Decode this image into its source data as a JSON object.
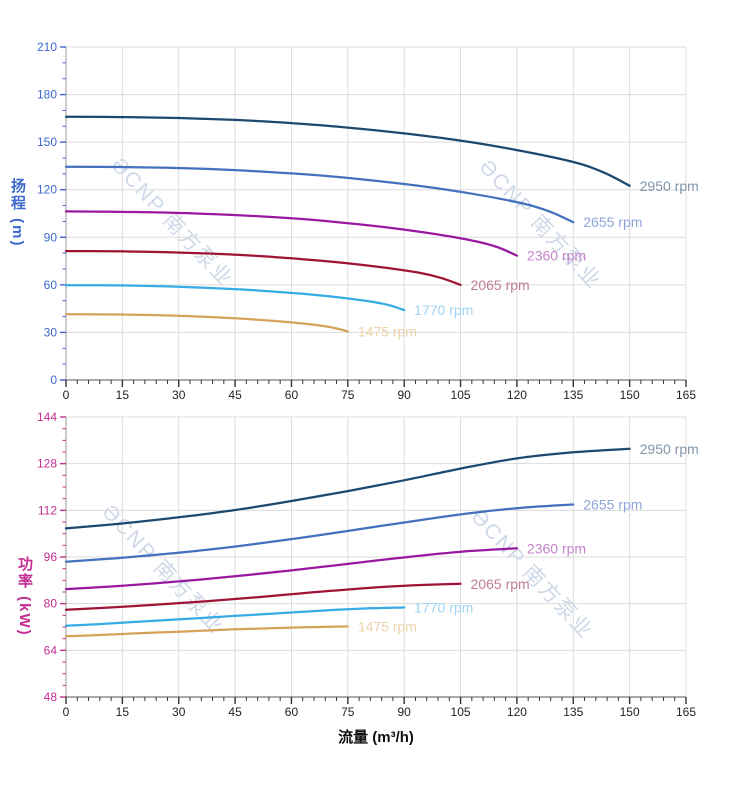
{
  "watermark": {
    "text": "ƏCNP 南方泵业",
    "color": "#c6d2e4"
  },
  "x_axis": {
    "label": "流量 (m³/h)",
    "min": 0,
    "max": 165,
    "tick_values": [
      0,
      15,
      30,
      45,
      60,
      75,
      90,
      105,
      120,
      135,
      150,
      165
    ],
    "minor_step": 3,
    "tick_label_color": "#222222"
  },
  "chart_data": [
    {
      "type": "line",
      "title": "",
      "ylabel": "扬程 (m)",
      "xlabel": "流量 (m³/h)",
      "axis_color": "#3e68cc",
      "grid": true,
      "ylim": [
        0,
        210
      ],
      "y_tick_values": [
        0,
        30,
        60,
        90,
        120,
        150,
        180,
        210
      ],
      "y_minor_step": 10,
      "series": [
        {
          "name": "2950 rpm",
          "color": "#1c4970",
          "label_color": "#8295a9",
          "points": [
            [
              0,
              166
            ],
            [
              15,
              165.8
            ],
            [
              30,
              165.2
            ],
            [
              45,
              164
            ],
            [
              60,
              162
            ],
            [
              75,
              159.2
            ],
            [
              90,
              155.5
            ],
            [
              105,
              151
            ],
            [
              120,
              145
            ],
            [
              135,
              137.5
            ],
            [
              143,
              131
            ],
            [
              150,
              122.5
            ]
          ]
        },
        {
          "name": "2655 rpm",
          "color": "#4471bd",
          "label_color": "#8fa6da",
          "points": [
            [
              0,
              134.5
            ],
            [
              13.5,
              134.3
            ],
            [
              27,
              133.8
            ],
            [
              40.5,
              132.8
            ],
            [
              54,
              131.2
            ],
            [
              67.5,
              129
            ],
            [
              81,
              126
            ],
            [
              94.5,
              122.3
            ],
            [
              108,
              117.5
            ],
            [
              121.5,
              111.4
            ],
            [
              129,
              106
            ],
            [
              135,
              99.5
            ]
          ]
        },
        {
          "name": "2360 rpm",
          "color": "#98199f",
          "label_color": "#c584cb",
          "points": [
            [
              0,
              106.3
            ],
            [
              12,
              106.1
            ],
            [
              24,
              105.7
            ],
            [
              36,
              104.9
            ],
            [
              48,
              103.7
            ],
            [
              60,
              102
            ],
            [
              72,
              99.6
            ],
            [
              84,
              96.6
            ],
            [
              96,
              92.8
            ],
            [
              108,
              88
            ],
            [
              114.7,
              83.9
            ],
            [
              120,
              78.4
            ]
          ]
        },
        {
          "name": "2065 rpm",
          "color": "#a01335",
          "label_color": "#bd7b95",
          "points": [
            [
              0,
              81.3
            ],
            [
              10.5,
              81.2
            ],
            [
              21,
              80.9
            ],
            [
              31.5,
              80.3
            ],
            [
              42,
              79.4
            ],
            [
              52.5,
              78
            ],
            [
              63,
              76.2
            ],
            [
              73.5,
              74
            ],
            [
              84,
              71.1
            ],
            [
              94.5,
              67.4
            ],
            [
              100,
              64.2
            ],
            [
              105,
              60
            ]
          ]
        },
        {
          "name": "1770 rpm",
          "color": "#35ace4",
          "label_color": "#9fd3f1",
          "points": [
            [
              0,
              59.8
            ],
            [
              9,
              59.7
            ],
            [
              18,
              59.5
            ],
            [
              27,
              59
            ],
            [
              36,
              58.3
            ],
            [
              45,
              57.3
            ],
            [
              54,
              56
            ],
            [
              63,
              54.4
            ],
            [
              72,
              52.3
            ],
            [
              81,
              49.5
            ],
            [
              86,
              47.2
            ],
            [
              90,
              44.1
            ]
          ]
        },
        {
          "name": "1475 rpm",
          "color": "#d5a259",
          "label_color": "#ecd2a9",
          "points": [
            [
              0,
              41.5
            ],
            [
              7.5,
              41.4
            ],
            [
              15,
              41.3
            ],
            [
              22.5,
              41
            ],
            [
              30,
              40.5
            ],
            [
              37.5,
              39.8
            ],
            [
              45,
              38.9
            ],
            [
              52.5,
              37.8
            ],
            [
              60,
              36.3
            ],
            [
              67.5,
              34.4
            ],
            [
              71.5,
              32.8
            ],
            [
              75,
              30.6
            ]
          ]
        }
      ]
    },
    {
      "type": "line",
      "title": "",
      "ylabel": "功率 (kW)",
      "xlabel": "流量 (m³/h)",
      "axis_color": "#c42d92",
      "grid": true,
      "ylim": [
        48,
        144
      ],
      "y_tick_values": [
        48,
        64,
        80,
        96,
        112,
        128,
        144
      ],
      "y_minor_step": 4,
      "series": [
        {
          "name": "2950 rpm",
          "color": "#1c4970",
          "label_color": "#8295a9",
          "points": [
            [
              0,
              105.8
            ],
            [
              15,
              107.5
            ],
            [
              30,
              109.6
            ],
            [
              45,
              112.1
            ],
            [
              60,
              115.2
            ],
            [
              75,
              118.6
            ],
            [
              90,
              122.3
            ],
            [
              105,
              126.3
            ],
            [
              120,
              129.8
            ],
            [
              135,
              131.9
            ],
            [
              150,
              133.1
            ]
          ]
        },
        {
          "name": "2655 rpm",
          "color": "#4471bd",
          "label_color": "#8fa6da",
          "points": [
            [
              0,
              94.4
            ],
            [
              13.5,
              95.6
            ],
            [
              27,
              97.1
            ],
            [
              40.5,
              98.9
            ],
            [
              54,
              101.1
            ],
            [
              67.5,
              103.5
            ],
            [
              81,
              106.1
            ],
            [
              94.5,
              108.7
            ],
            [
              108,
              111.1
            ],
            [
              121.5,
              112.9
            ],
            [
              135,
              114
            ]
          ]
        },
        {
          "name": "2360 rpm",
          "color": "#98199f",
          "label_color": "#c584cb",
          "points": [
            [
              0,
              85
            ],
            [
              12,
              85.9
            ],
            [
              24,
              87
            ],
            [
              36,
              88.3
            ],
            [
              48,
              89.8
            ],
            [
              60,
              91.4
            ],
            [
              72,
              93.2
            ],
            [
              84,
              95
            ],
            [
              96,
              96.7
            ],
            [
              108,
              98.1
            ],
            [
              120,
              99
            ]
          ]
        },
        {
          "name": "2065 rpm",
          "color": "#a01335",
          "label_color": "#bd7b95",
          "points": [
            [
              0,
              77.9
            ],
            [
              10.5,
              78.6
            ],
            [
              21,
              79.4
            ],
            [
              31.5,
              80.3
            ],
            [
              42,
              81.3
            ],
            [
              52.5,
              82.4
            ],
            [
              63,
              83.6
            ],
            [
              73.5,
              84.7
            ],
            [
              84,
              85.7
            ],
            [
              94.5,
              86.4
            ],
            [
              105,
              86.8
            ]
          ]
        },
        {
          "name": "1770 rpm",
          "color": "#35ace4",
          "label_color": "#9fd3f1",
          "points": [
            [
              0,
              72.4
            ],
            [
              9,
              73
            ],
            [
              18,
              73.7
            ],
            [
              27,
              74.4
            ],
            [
              36,
              75.1
            ],
            [
              45,
              75.8
            ],
            [
              54,
              76.5
            ],
            [
              63,
              77.2
            ],
            [
              72,
              77.9
            ],
            [
              81,
              78.4
            ],
            [
              90,
              78.7
            ]
          ]
        },
        {
          "name": "1475 rpm",
          "color": "#d5a259",
          "label_color": "#ecd2a9",
          "points": [
            [
              0,
              68.8
            ],
            [
              7.5,
              69.2
            ],
            [
              15,
              69.6
            ],
            [
              22.5,
              70
            ],
            [
              30,
              70.4
            ],
            [
              37.5,
              70.8
            ],
            [
              45,
              71.2
            ],
            [
              52.5,
              71.5
            ],
            [
              60,
              71.8
            ],
            [
              67.5,
              72
            ],
            [
              75,
              72.2
            ]
          ]
        }
      ]
    }
  ]
}
